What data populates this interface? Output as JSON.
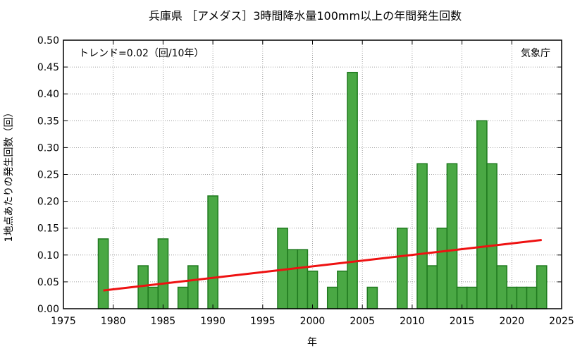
{
  "chart_data": {
    "type": "bar",
    "title": "兵庫県 ［アメダス］3時間降水量100mm以上の年間発生回数",
    "xlabel": "年",
    "ylabel": "1地点あたりの発生回数（回）",
    "trend_label": "トレンド=0.02（回/10年）",
    "source_label": "気象庁",
    "xlim": [
      1975,
      2025
    ],
    "ylim": [
      0,
      0.5
    ],
    "xticks": [
      1975,
      1980,
      1985,
      1990,
      1995,
      2000,
      2005,
      2010,
      2015,
      2020,
      2025
    ],
    "yticks": [
      0.0,
      0.05,
      0.1,
      0.15,
      0.2,
      0.25,
      0.3,
      0.35,
      0.4,
      0.45,
      0.5
    ],
    "ytick_labels": [
      "0.00",
      "0.05",
      "0.10",
      "0.15",
      "0.20",
      "0.25",
      "0.30",
      "0.35",
      "0.40",
      "0.45",
      "0.50"
    ],
    "grid": true,
    "x": [
      1979,
      1980,
      1981,
      1982,
      1983,
      1984,
      1985,
      1986,
      1987,
      1988,
      1989,
      1990,
      1991,
      1992,
      1993,
      1994,
      1995,
      1996,
      1997,
      1998,
      1999,
      2000,
      2001,
      2002,
      2003,
      2004,
      2005,
      2006,
      2007,
      2008,
      2009,
      2010,
      2011,
      2012,
      2013,
      2014,
      2015,
      2016,
      2017,
      2018,
      2019,
      2020,
      2021,
      2022,
      2023
    ],
    "values": [
      0.13,
      0.0,
      0.0,
      0.0,
      0.08,
      0.04,
      0.13,
      0.0,
      0.04,
      0.08,
      0.0,
      0.21,
      0.0,
      0.0,
      0.0,
      0.0,
      0.0,
      0.0,
      0.15,
      0.11,
      0.11,
      0.07,
      0.0,
      0.04,
      0.07,
      0.44,
      0.0,
      0.04,
      0.0,
      0.0,
      0.15,
      0.0,
      0.27,
      0.08,
      0.15,
      0.27,
      0.04,
      0.04,
      0.35,
      0.27,
      0.08,
      0.04,
      0.04,
      0.04,
      0.08
    ],
    "trend": {
      "x": [
        1979,
        2023
      ],
      "y": [
        0.034,
        0.128
      ]
    },
    "colors": {
      "bar_fill": "#4aa844",
      "bar_edge": "#1f7a1f",
      "trend": "#ee1111",
      "grid": "#888888"
    }
  }
}
